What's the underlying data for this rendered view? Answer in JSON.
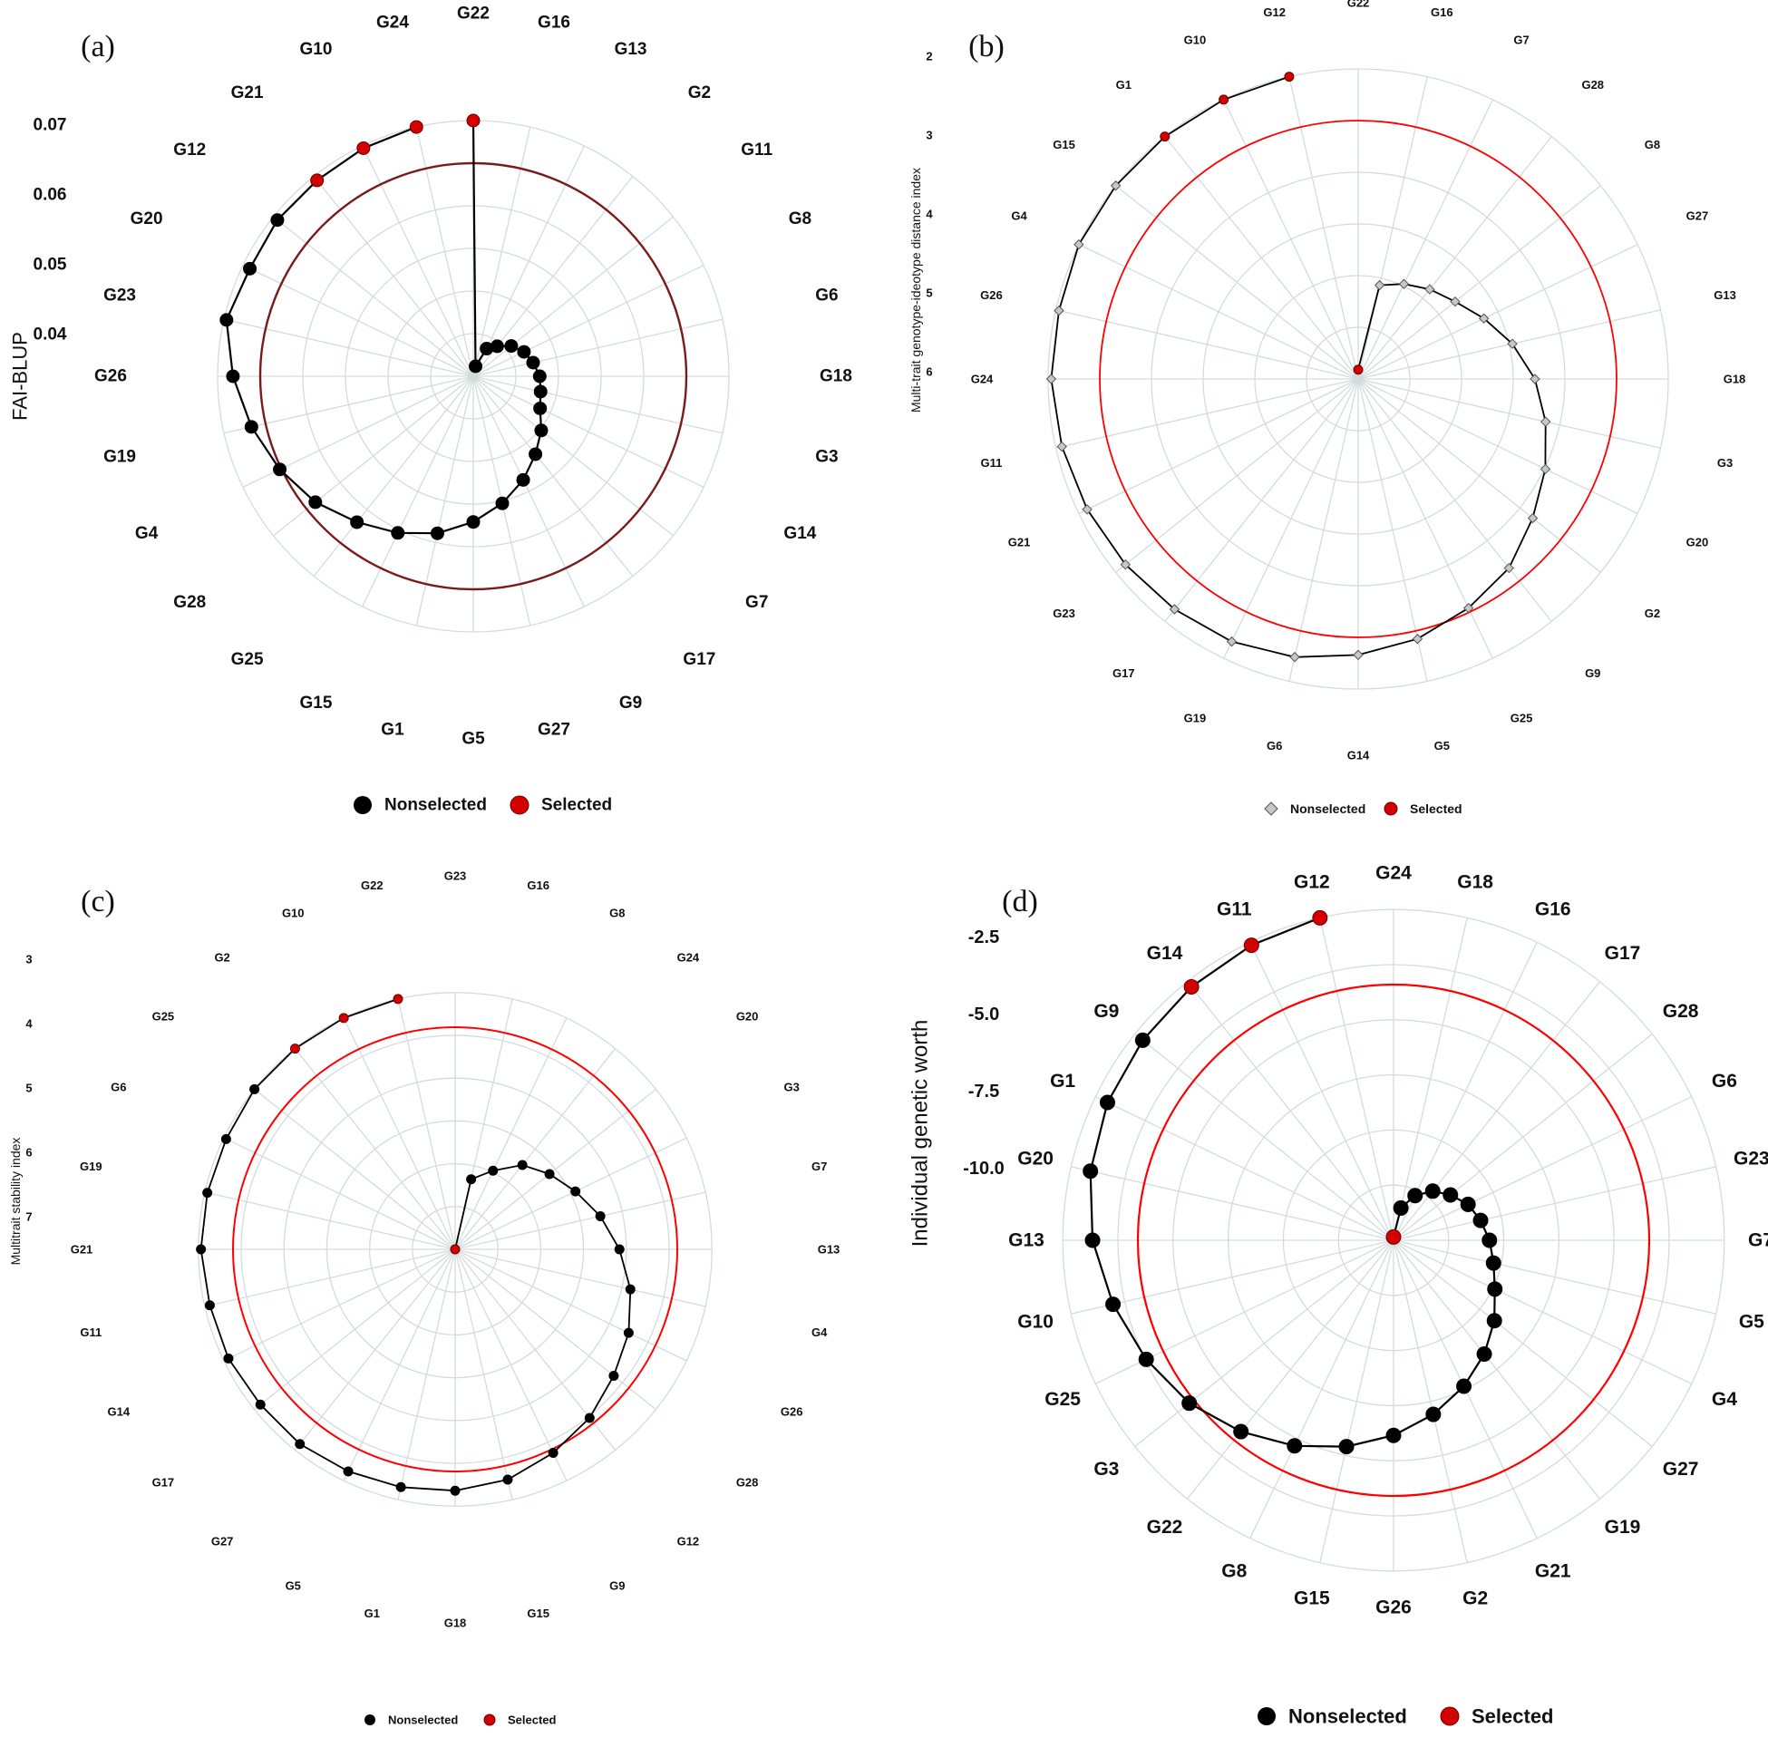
{
  "colors": {
    "grid": "#d3dcdc",
    "line": "#000000",
    "nonselected": "#000000",
    "selected": "#d40000",
    "cutoff_a": "#7a1a1a",
    "cutoff": "#ff0000",
    "hollow_fill": "#c8c8c8"
  },
  "legend": {
    "nonselected": "Nonselected",
    "selected": "Selected"
  },
  "chart_data": [
    {
      "panel": "(a)",
      "type": "radar",
      "ylabel": "FAI-BLUP",
      "ticks": [
        "0.07",
        "0.06",
        "0.05",
        "0.04"
      ],
      "genotypes": [
        "G22",
        "G16",
        "G13",
        "G2",
        "G11",
        "G8",
        "G6",
        "G18",
        "G3",
        "G14",
        "G7",
        "G17",
        "G9",
        "G27",
        "G5",
        "G1",
        "G15",
        "G25",
        "G28",
        "G4",
        "G19",
        "G26",
        "G23",
        "G20",
        "G12",
        "G21",
        "G10",
        "G24"
      ],
      "radius_fraction": [
        1.0,
        0.04,
        0.12,
        0.15,
        0.19,
        0.22,
        0.24,
        0.26,
        0.27,
        0.29,
        0.34,
        0.39,
        0.45,
        0.51,
        0.57,
        0.63,
        0.68,
        0.73,
        0.79,
        0.84,
        0.89,
        0.94,
        0.99,
        0.97,
        0.98,
        0.98,
        0.99,
        1.0
      ],
      "selected": [
        "G22",
        "G24",
        "G10",
        "G21"
      ],
      "cutoff_fraction": 0.89
    },
    {
      "panel": "(b)",
      "type": "radar",
      "ylabel": "Multi-trait genotype-ideotype distance index",
      "ticks": [
        "2",
        "3",
        "4",
        "5",
        "6"
      ],
      "genotypes": [
        "G22",
        "G16",
        "G7",
        "G28",
        "G8",
        "G27",
        "G13",
        "G18",
        "G3",
        "G20",
        "G2",
        "G9",
        "G25",
        "G5",
        "G14",
        "G6",
        "G19",
        "G17",
        "G23",
        "G21",
        "G11",
        "G24",
        "G26",
        "G4",
        "G15",
        "G1",
        "G10",
        "G12"
      ],
      "radius_fraction": [
        0.03,
        0.31,
        0.34,
        0.37,
        0.4,
        0.45,
        0.51,
        0.57,
        0.62,
        0.67,
        0.72,
        0.78,
        0.82,
        0.86,
        0.89,
        0.92,
        0.94,
        0.95,
        0.96,
        0.97,
        0.98,
        0.99,
        0.99,
        1.0,
        1.0,
        1.0,
        1.0,
        1.0
      ],
      "selected": [
        "G22",
        "G12",
        "G10",
        "G1"
      ],
      "cutoff_fraction": 0.96
    },
    {
      "panel": "(c)",
      "type": "radar",
      "ylabel": "Multitrait stability index",
      "ticks": [
        "3",
        "4",
        "5",
        "6",
        "7"
      ],
      "genotypes": [
        "G23",
        "G16",
        "G8",
        "G24",
        "G20",
        "G3",
        "G7",
        "G13",
        "G4",
        "G26",
        "G28",
        "G12",
        "G9",
        "G15",
        "G18",
        "G1",
        "G5",
        "G27",
        "G17",
        "G14",
        "G11",
        "G21",
        "G19",
        "G6",
        "G25",
        "G2",
        "G10",
        "G22"
      ],
      "radius_fraction": [
        0.0,
        0.28,
        0.34,
        0.42,
        0.47,
        0.52,
        0.58,
        0.64,
        0.7,
        0.75,
        0.79,
        0.84,
        0.88,
        0.92,
        0.94,
        0.95,
        0.96,
        0.97,
        0.97,
        0.98,
        0.98,
        0.99,
        0.99,
        0.99,
        1.0,
        1.0,
        1.0,
        1.0
      ],
      "selected": [
        "G23",
        "G22",
        "G10",
        "G2"
      ],
      "cutoff_fraction": 0.96
    },
    {
      "panel": "(d)",
      "type": "radar",
      "ylabel": "Individual genetic worth",
      "ticks": [
        "-2.5",
        "-5.0",
        "-7.5",
        "-10.0"
      ],
      "genotypes": [
        "G24",
        "G18",
        "G16",
        "G17",
        "G28",
        "G6",
        "G23",
        "G7",
        "G5",
        "G4",
        "G27",
        "G19",
        "G21",
        "G2",
        "G26",
        "G15",
        "G8",
        "G22",
        "G3",
        "G25",
        "G10",
        "G13",
        "G20",
        "G1",
        "G9",
        "G14",
        "G11",
        "G12"
      ],
      "radius_fraction": [
        0.01,
        0.1,
        0.15,
        0.19,
        0.22,
        0.25,
        0.27,
        0.29,
        0.31,
        0.34,
        0.39,
        0.44,
        0.49,
        0.54,
        0.59,
        0.64,
        0.69,
        0.74,
        0.79,
        0.83,
        0.87,
        0.91,
        0.94,
        0.96,
        0.97,
        0.98,
        0.99,
        1.0
      ],
      "selected": [
        "G24",
        "G12",
        "G11",
        "G14"
      ],
      "cutoff_fraction": 0.88
    }
  ]
}
